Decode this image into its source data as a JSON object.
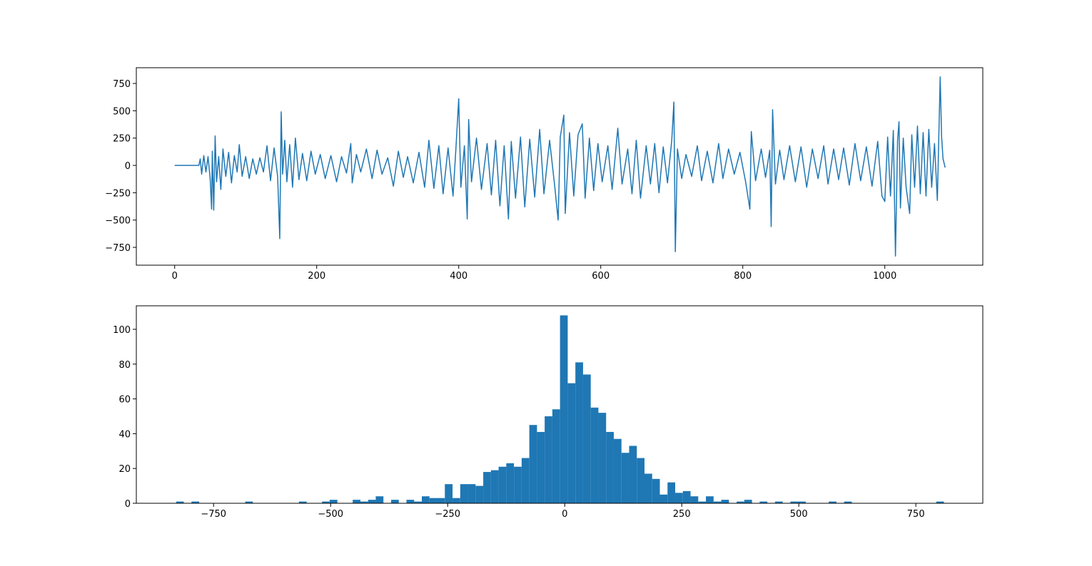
{
  "chart_data": [
    {
      "type": "line",
      "color": "#1f77b4",
      "x": [
        0,
        34,
        36,
        38,
        41,
        44,
        47,
        50,
        52,
        53,
        55,
        57,
        59,
        62,
        65,
        68,
        72,
        76,
        80,
        84,
        88,
        91,
        95,
        100,
        105,
        110,
        115,
        120,
        125,
        130,
        135,
        140,
        145,
        148,
        150,
        152,
        155,
        158,
        162,
        166,
        170,
        175,
        180,
        186,
        192,
        198,
        205,
        212,
        220,
        228,
        235,
        242,
        248,
        250,
        256,
        262,
        270,
        278,
        285,
        292,
        300,
        308,
        315,
        322,
        328,
        336,
        344,
        352,
        358,
        365,
        372,
        378,
        385,
        392,
        396,
        400,
        403,
        408,
        412,
        414,
        418,
        425,
        432,
        440,
        446,
        452,
        458,
        464,
        470,
        474,
        480,
        487,
        493,
        500,
        507,
        514,
        520,
        528,
        535,
        540,
        543,
        548,
        550,
        556,
        562,
        568,
        574,
        578,
        584,
        590,
        596,
        602,
        610,
        616,
        624,
        630,
        638,
        644,
        650,
        656,
        664,
        670,
        676,
        682,
        688,
        694,
        700,
        703,
        705,
        708,
        714,
        720,
        728,
        736,
        742,
        750,
        758,
        766,
        772,
        780,
        788,
        796,
        804,
        810,
        812,
        818,
        826,
        832,
        838,
        840,
        842,
        846,
        852,
        858,
        866,
        874,
        882,
        890,
        898,
        906,
        914,
        920,
        928,
        935,
        942,
        950,
        958,
        966,
        974,
        982,
        990,
        996,
        1000,
        1004,
        1008,
        1012,
        1015,
        1018,
        1020,
        1022,
        1026,
        1030,
        1035,
        1038,
        1042,
        1046,
        1050,
        1054,
        1058,
        1062,
        1066,
        1070,
        1074,
        1078,
        1080,
        1082,
        1085
      ],
      "values": [
        0,
        0,
        60,
        -80,
        90,
        -60,
        80,
        -120,
        -400,
        130,
        -410,
        270,
        -150,
        80,
        -220,
        150,
        -100,
        120,
        -160,
        90,
        -60,
        190,
        -100,
        80,
        -120,
        60,
        -80,
        70,
        -60,
        180,
        -140,
        160,
        -100,
        -670,
        490,
        -80,
        230,
        -150,
        190,
        -200,
        250,
        -130,
        110,
        -140,
        130,
        -80,
        100,
        -120,
        90,
        -150,
        80,
        -70,
        200,
        -160,
        100,
        -60,
        150,
        -120,
        140,
        -80,
        70,
        -190,
        130,
        -110,
        80,
        -160,
        120,
        -200,
        230,
        -210,
        180,
        -260,
        160,
        -280,
        150,
        610,
        -200,
        180,
        -490,
        420,
        -150,
        250,
        -220,
        200,
        -270,
        230,
        -370,
        180,
        -490,
        220,
        -300,
        260,
        -380,
        240,
        -290,
        330,
        -260,
        230,
        -180,
        -500,
        260,
        460,
        -440,
        300,
        -280,
        280,
        380,
        -300,
        250,
        -230,
        200,
        -150,
        180,
        -220,
        340,
        -170,
        150,
        -260,
        230,
        -300,
        180,
        -170,
        200,
        -250,
        170,
        -160,
        230,
        580,
        -790,
        150,
        -120,
        100,
        -100,
        180,
        -140,
        130,
        -160,
        200,
        -120,
        150,
        -80,
        120,
        -150,
        -400,
        310,
        -140,
        150,
        -110,
        140,
        -560,
        510,
        -170,
        140,
        -130,
        180,
        -150,
        170,
        -200,
        150,
        -120,
        180,
        -170,
        150,
        -130,
        160,
        -180,
        200,
        -140,
        170,
        -190,
        220,
        -280,
        -330,
        260,
        -280,
        320,
        -830,
        230,
        400,
        -390,
        250,
        -200,
        -440,
        280,
        -200,
        360,
        -260,
        300,
        -280,
        330,
        -200,
        200,
        -320,
        810,
        260,
        60,
        -20
      ],
      "xlim": [
        -54,
        1138
      ],
      "ylim": [
        -913,
        894
      ],
      "xticks": [
        0,
        200,
        400,
        600,
        800,
        1000
      ],
      "yticks": [
        {
          "value": -750,
          "label": "−750"
        },
        {
          "value": -500,
          "label": "−500"
        },
        {
          "value": -250,
          "label": "−250"
        },
        0,
        250,
        500,
        750
      ]
    },
    {
      "type": "histogram",
      "color": "#1f77b4",
      "bins": [
        -830,
        -813.6,
        -797.2,
        -780.8,
        -764.4,
        -748,
        -731.6,
        -715.2,
        -698.8,
        -682.4,
        -666,
        -649.6,
        -633.2,
        -616.8,
        -600.4,
        -584,
        -567.6,
        -551.2,
        -534.8,
        -518.4,
        -502,
        -485.6,
        -469.2,
        -452.8,
        -436.4,
        -420,
        -403.6,
        -387.2,
        -370.8,
        -354.4,
        -338,
        -321.6,
        -305.2,
        -288.8,
        -272.4,
        -256,
        -239.6,
        -223.2,
        -206.8,
        -190.4,
        -174,
        -157.6,
        -141.2,
        -124.8,
        -108.4,
        -92,
        -75.6,
        -59.2,
        -42.8,
        -26.4,
        -10,
        6.4,
        22.8,
        39.2,
        55.6,
        72,
        88.4,
        104.8,
        121.2,
        137.6,
        154,
        170.4,
        186.8,
        203.2,
        219.6,
        236,
        252.4,
        268.8,
        285.2,
        301.6,
        318,
        334.4,
        350.8,
        367.2,
        383.6,
        400,
        416.4,
        432.8,
        449.2,
        465.6,
        482,
        498.4,
        514.8,
        531.2,
        547.6,
        564,
        580.4,
        596.8,
        613.2,
        629.6,
        646,
        662.4,
        678.8,
        695.2,
        711.6,
        728,
        744.4,
        760.8,
        777.2,
        793.6,
        810
      ],
      "values": [
        1,
        0,
        1,
        0,
        0,
        0,
        0,
        0,
        0,
        1,
        0,
        0,
        0,
        0,
        0,
        0,
        1,
        0,
        0,
        1,
        2,
        0,
        0,
        2,
        1,
        2,
        4,
        0,
        2,
        0,
        2,
        1,
        4,
        3,
        3,
        11,
        3,
        11,
        11,
        10,
        18,
        19,
        21,
        23,
        21,
        26,
        45,
        41,
        50,
        54,
        108,
        69,
        81,
        74,
        55,
        52,
        41,
        37,
        29,
        33,
        26,
        17,
        14,
        5,
        12,
        6,
        7,
        4,
        1,
        4,
        1,
        2,
        0,
        1,
        2,
        0,
        1,
        0,
        1,
        0,
        1,
        1,
        0,
        0,
        0,
        1,
        0,
        1,
        0,
        0,
        0,
        0,
        0,
        0,
        0,
        0,
        0,
        0,
        0,
        1
      ],
      "xlim": [
        -915,
        893
      ],
      "ylim": [
        0,
        113.5
      ],
      "xticks": [
        {
          "value": -750,
          "label": "−750"
        },
        {
          "value": -500,
          "label": "−500"
        },
        {
          "value": -250,
          "label": "−250"
        },
        0,
        250,
        500,
        750
      ],
      "yticks": [
        0,
        20,
        40,
        60,
        80,
        100
      ]
    }
  ]
}
